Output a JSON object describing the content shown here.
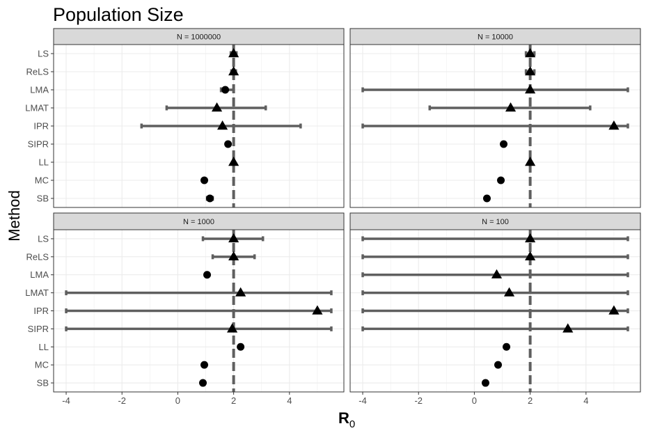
{
  "chart_data": {
    "type": "scatter",
    "title": "Population Size",
    "xlabel": "R",
    "xlabel_sub": "0",
    "ylabel": "Method",
    "categories": [
      "LS",
      "ReLS",
      "LMA",
      "LMAT",
      "IPR",
      "SIPR",
      "LL",
      "MC",
      "SB"
    ],
    "x_ticks": [
      -4,
      -2,
      0,
      2,
      4
    ],
    "xlim": [
      -4.45,
      5.95
    ],
    "reference_x": 2,
    "grid": true,
    "legend": "none",
    "colors": {
      "point": "#000000",
      "errorbar": "#5f5f5f",
      "reference": "#5f5f5f",
      "strip": "#d9d9d9",
      "grid": "#ebebeb",
      "border": "#333333"
    },
    "panels": [
      {
        "label": "N = 1000000",
        "points": [
          {
            "method": "LS",
            "value": 2.0,
            "shape": "triangle",
            "lower": 1.9,
            "upper": 2.1
          },
          {
            "method": "ReLS",
            "value": 2.0,
            "shape": "triangle",
            "lower": 1.92,
            "upper": 2.08
          },
          {
            "method": "LMA",
            "value": 1.7,
            "shape": "circle",
            "lower": 1.55,
            "upper": 2.0
          },
          {
            "method": "LMAT",
            "value": 1.4,
            "shape": "triangle",
            "lower": -0.4,
            "upper": 3.15
          },
          {
            "method": "IPR",
            "value": 1.6,
            "shape": "triangle",
            "lower": -1.3,
            "upper": 4.4
          },
          {
            "method": "SIPR",
            "value": 1.8,
            "shape": "circle",
            "lower": null,
            "upper": null
          },
          {
            "method": "LL",
            "value": 2.0,
            "shape": "triangle",
            "lower": null,
            "upper": null
          },
          {
            "method": "MC",
            "value": 0.95,
            "shape": "circle",
            "lower": null,
            "upper": null
          },
          {
            "method": "SB",
            "value": 1.15,
            "shape": "circle",
            "lower": 1.05,
            "upper": 1.25
          }
        ]
      },
      {
        "label": "N = 10000",
        "points": [
          {
            "method": "LS",
            "value": 2.0,
            "shape": "triangle",
            "lower": 1.85,
            "upper": 2.15
          },
          {
            "method": "ReLS",
            "value": 2.0,
            "shape": "triangle",
            "lower": 1.85,
            "upper": 2.15
          },
          {
            "method": "LMA",
            "value": 2.0,
            "shape": "triangle",
            "lower": -4.0,
            "upper": 5.5
          },
          {
            "method": "LMAT",
            "value": 1.3,
            "shape": "triangle",
            "lower": -1.6,
            "upper": 4.15
          },
          {
            "method": "IPR",
            "value": 5.0,
            "shape": "triangle",
            "lower": -4.0,
            "upper": 5.5
          },
          {
            "method": "SIPR",
            "value": 1.05,
            "shape": "circle",
            "lower": null,
            "upper": null
          },
          {
            "method": "LL",
            "value": 2.0,
            "shape": "triangle",
            "lower": null,
            "upper": null
          },
          {
            "method": "MC",
            "value": 0.95,
            "shape": "circle",
            "lower": null,
            "upper": null
          },
          {
            "method": "SB",
            "value": 0.45,
            "shape": "circle",
            "lower": null,
            "upper": null
          }
        ]
      },
      {
        "label": "N = 1000",
        "points": [
          {
            "method": "LS",
            "value": 2.0,
            "shape": "triangle",
            "lower": 0.9,
            "upper": 3.05
          },
          {
            "method": "ReLS",
            "value": 2.0,
            "shape": "triangle",
            "lower": 1.25,
            "upper": 2.75
          },
          {
            "method": "LMA",
            "value": 1.05,
            "shape": "circle",
            "lower": null,
            "upper": null
          },
          {
            "method": "LMAT",
            "value": 2.25,
            "shape": "triangle",
            "lower": -4.0,
            "upper": 5.5
          },
          {
            "method": "IPR",
            "value": 5.0,
            "shape": "triangle",
            "lower": -4.0,
            "upper": 5.5
          },
          {
            "method": "SIPR",
            "value": 1.95,
            "shape": "triangle",
            "lower": -4.0,
            "upper": 5.5
          },
          {
            "method": "LL",
            "value": 2.25,
            "shape": "circle",
            "lower": null,
            "upper": null
          },
          {
            "method": "MC",
            "value": 0.95,
            "shape": "circle",
            "lower": null,
            "upper": null
          },
          {
            "method": "SB",
            "value": 0.9,
            "shape": "circle",
            "lower": null,
            "upper": null
          }
        ]
      },
      {
        "label": "N = 100",
        "points": [
          {
            "method": "LS",
            "value": 2.0,
            "shape": "triangle",
            "lower": -4.0,
            "upper": 5.5
          },
          {
            "method": "ReLS",
            "value": 2.0,
            "shape": "triangle",
            "lower": -4.0,
            "upper": 5.5
          },
          {
            "method": "LMA",
            "value": 0.8,
            "shape": "triangle",
            "lower": -4.0,
            "upper": 5.5
          },
          {
            "method": "LMAT",
            "value": 1.25,
            "shape": "triangle",
            "lower": -4.0,
            "upper": 5.5
          },
          {
            "method": "IPR",
            "value": 5.0,
            "shape": "triangle",
            "lower": -4.0,
            "upper": 5.5
          },
          {
            "method": "SIPR",
            "value": 3.35,
            "shape": "triangle",
            "lower": -4.0,
            "upper": 5.5
          },
          {
            "method": "LL",
            "value": 1.15,
            "shape": "circle",
            "lower": null,
            "upper": null
          },
          {
            "method": "MC",
            "value": 0.85,
            "shape": "circle",
            "lower": null,
            "upper": null
          },
          {
            "method": "SB",
            "value": 0.4,
            "shape": "circle",
            "lower": null,
            "upper": null
          }
        ]
      }
    ]
  }
}
